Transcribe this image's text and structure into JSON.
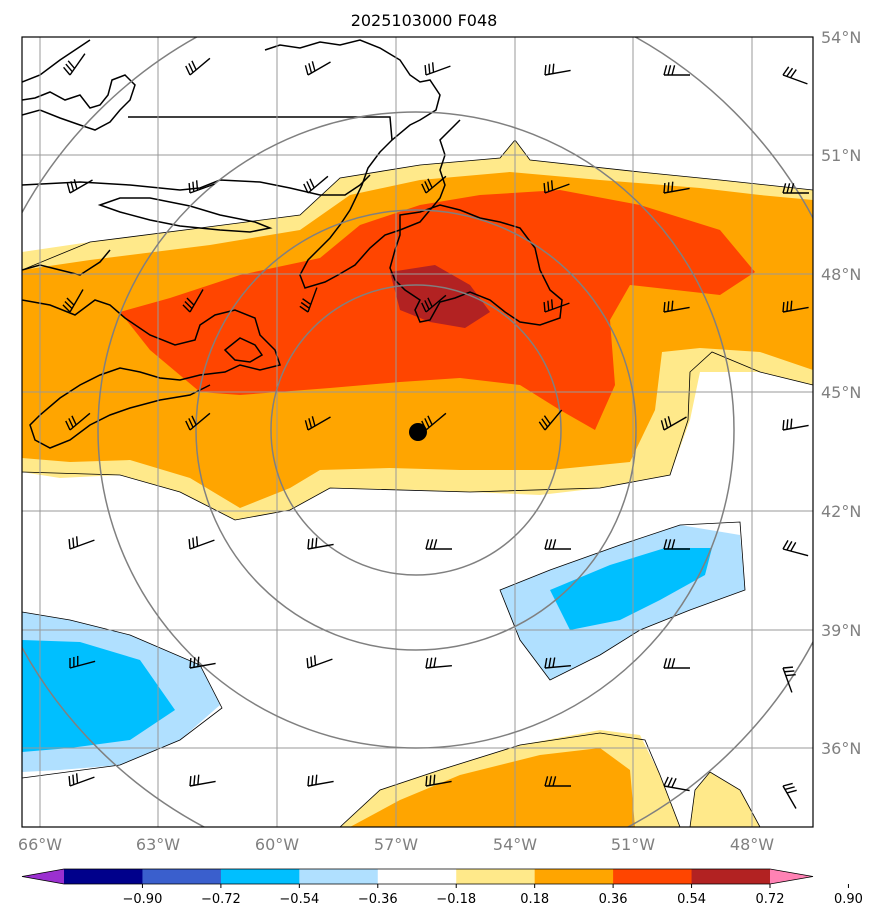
{
  "title": "2025103000 F048",
  "lon_labels": [
    "66°W",
    "63°W",
    "60°W",
    "57°W",
    "54°W",
    "51°W",
    "48°W"
  ],
  "lat_labels": [
    "54°N",
    "51°N",
    "48°N",
    "45°N",
    "42°N",
    "39°N",
    "36°N"
  ],
  "colorbar": {
    "labels": [
      "−0.90",
      "−0.72",
      "−0.54",
      "−0.36",
      "−0.18",
      "0.18",
      "0.36",
      "0.54",
      "0.72",
      "0.90"
    ],
    "colors": [
      "#9b30d0",
      "#00008b",
      "#3a5fcd",
      "#00bfff",
      "#b0e0ff",
      "#ffffff",
      "#ffe98a",
      "#ffa500",
      "#ff4500",
      "#b22222",
      "#ff82b4"
    ]
  },
  "fill_colors": {
    "pos1": "#ffe98a",
    "pos2": "#ffa500",
    "pos3": "#ff4500",
    "pos4": "#b22222",
    "neg1": "#b0e0ff",
    "neg2": "#00bfff"
  },
  "center_marker": "storm-center-dot"
}
